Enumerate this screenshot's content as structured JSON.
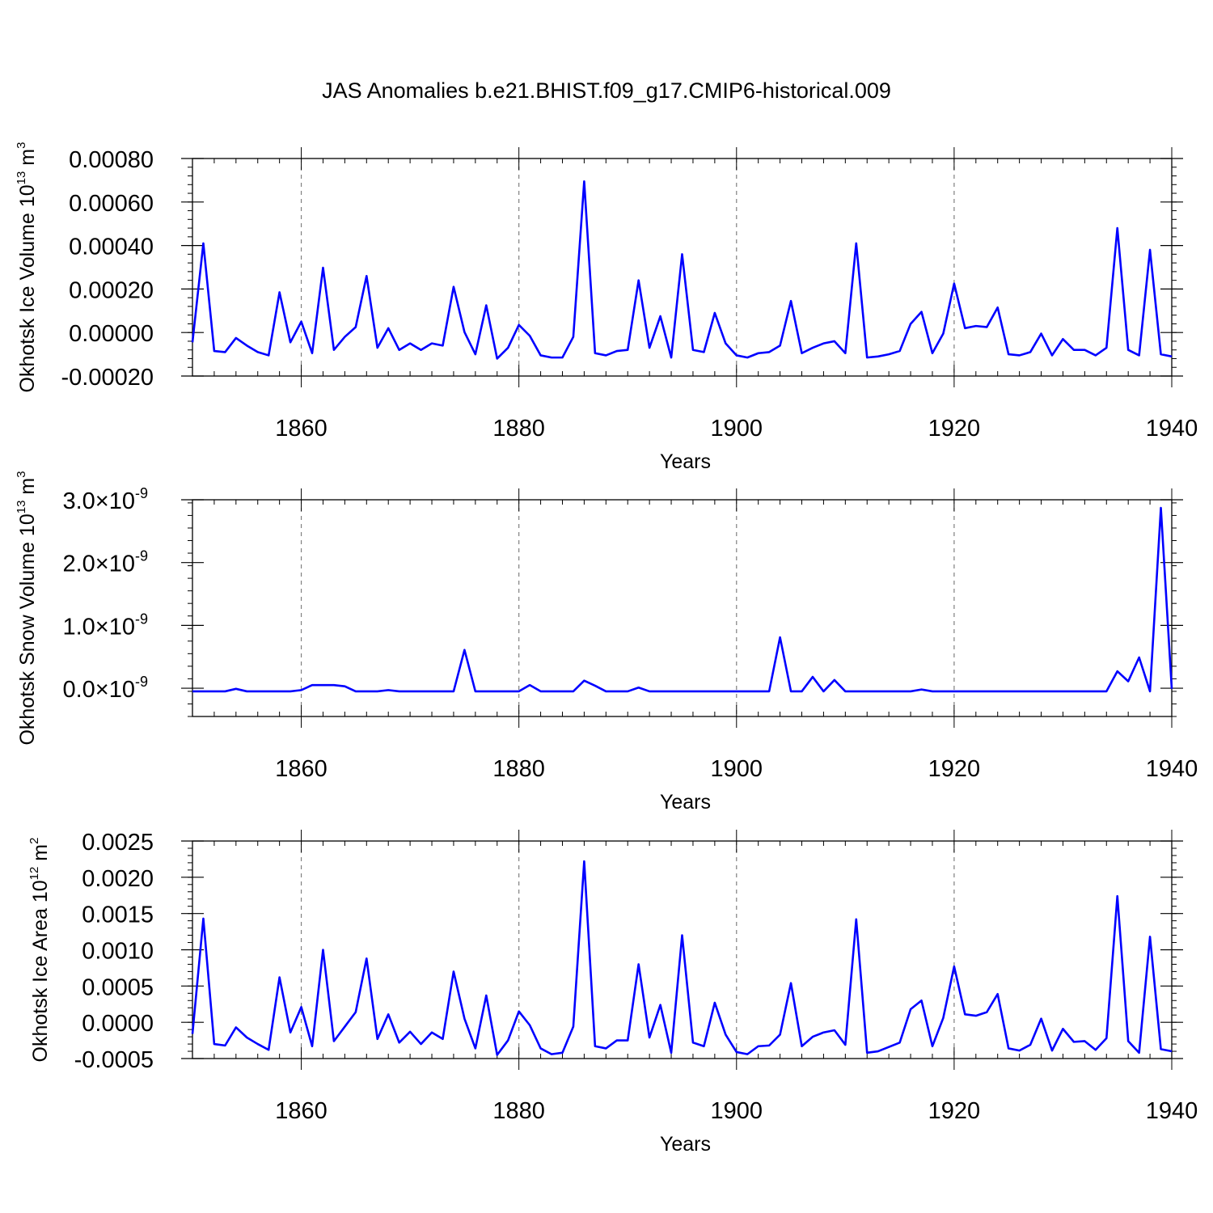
{
  "figure_title": "JAS Anomalies b.e21.BHIST.f09_g17.CMIP6-historical.009",
  "colors": {
    "series": "#0000ff",
    "axis": "#000000",
    "grid": "#808080"
  },
  "chart_data": [
    {
      "type": "line",
      "name": "ice-volume",
      "ylabel_main": "Okhotsk Ice Volume 10",
      "ylabel_exp": "13",
      "ylabel_unit": " m",
      "ylabel_unit_exp": "3",
      "xlabel": "Years",
      "xlim": [
        1850,
        1940
      ],
      "ylim": [
        -0.0002,
        0.0008
      ],
      "xticks": [
        1860,
        1880,
        1900,
        1920,
        1940
      ],
      "xtick_labels": [
        "1860",
        "1880",
        "1900",
        "1920",
        "1940"
      ],
      "yticks": [
        -0.0002,
        0,
        0.0002,
        0.0004,
        0.0006,
        0.0008
      ],
      "ytick_labels": [
        "-0.00020",
        "0.00000",
        "0.00020",
        "0.00040",
        "0.00060",
        "0.00080"
      ],
      "grid": "vertical-dashed",
      "x_start": 1850,
      "values": [
        -4.5e-05,
        0.00041,
        -8.5e-05,
        -9e-05,
        -2.5e-05,
        -6e-05,
        -9e-05,
        -0.000105,
        0.000185,
        -4.5e-05,
        5e-05,
        -9.5e-05,
        0.000298,
        -8e-05,
        -2e-05,
        2.5e-05,
        0.00026,
        -7e-05,
        2e-05,
        -8e-05,
        -5e-05,
        -8e-05,
        -5e-05,
        -6e-05,
        0.00021,
        2e-06,
        -0.0001,
        0.000125,
        -0.00012,
        -7e-05,
        3.5e-05,
        -1.5e-05,
        -0.000105,
        -0.000115,
        -0.000115,
        -2e-05,
        0.000695,
        -9.5e-05,
        -0.000105,
        -8.5e-05,
        -8e-05,
        0.00024,
        -7e-05,
        7.5e-05,
        -0.000115,
        0.00036,
        -8e-05,
        -9e-05,
        9e-05,
        -5e-05,
        -0.000105,
        -0.000115,
        -9.5e-05,
        -9e-05,
        -6e-05,
        0.000145,
        -9.5e-05,
        -7e-05,
        -5e-05,
        -4e-05,
        -9.5e-05,
        0.00041,
        -0.000115,
        -0.00011,
        -0.0001,
        -8.5e-05,
        4e-05,
        9.5e-05,
        -9.5e-05,
        -5e-06,
        0.000225,
        2e-05,
        3e-05,
        2.5e-05,
        0.000115,
        -0.0001,
        -0.000105,
        -9e-05,
        -5e-06,
        -0.000105,
        -3e-05,
        -8e-05,
        -8e-05,
        -0.000105,
        -7e-05,
        0.00048,
        -8e-05,
        -0.000105,
        0.00038,
        -0.0001,
        -0.00011
      ]
    },
    {
      "type": "line",
      "name": "snow-volume",
      "ylabel_main": "Okhotsk Snow Volume 10",
      "ylabel_exp": "13",
      "ylabel_unit": " m",
      "ylabel_unit_exp": "3",
      "xlabel": "Years",
      "xlim": [
        1850,
        1940
      ],
      "ylim": [
        -4.5e-10,
        3e-09
      ],
      "xticks": [
        1860,
        1880,
        1900,
        1920,
        1940
      ],
      "xtick_labels": [
        "1860",
        "1880",
        "1900",
        "1920",
        "1940"
      ],
      "yticks": [
        0,
        1e-09,
        2e-09,
        3e-09
      ],
      "ytick_mantissas": [
        "0.0",
        "1.0",
        "2.0",
        "3.0"
      ],
      "ytick_times": "×",
      "ytick_base": "10",
      "ytick_exp": "-9",
      "grid": "vertical-dashed",
      "x_start": 1850,
      "values": [
        -5e-11,
        -5e-11,
        -5e-11,
        -5e-11,
        -1e-11,
        -5e-11,
        -5e-11,
        -5e-11,
        -5e-11,
        -5e-11,
        -3e-11,
        5e-11,
        5e-11,
        5e-11,
        3e-11,
        -5e-11,
        -5e-11,
        -5e-11,
        -3e-11,
        -5e-11,
        -5e-11,
        -5e-11,
        -5e-11,
        -5e-11,
        -5e-11,
        6.1e-10,
        -5e-11,
        -5e-11,
        -5e-11,
        -5e-11,
        -5e-11,
        5e-11,
        -5e-11,
        -5e-11,
        -5e-11,
        -5e-11,
        1.2e-10,
        4e-11,
        -5e-11,
        -5e-11,
        -5e-11,
        1e-11,
        -5e-11,
        -5e-11,
        -5e-11,
        -5e-11,
        -5e-11,
        -5e-11,
        -5e-11,
        -5e-11,
        -5e-11,
        -5e-11,
        -5e-11,
        -5e-11,
        8.1e-10,
        -5e-11,
        -5e-11,
        1.8e-10,
        -5e-11,
        1.3e-10,
        -5e-11,
        -5e-11,
        -5e-11,
        -5e-11,
        -5e-11,
        -5e-11,
        -5e-11,
        -2e-11,
        -5e-11,
        -5e-11,
        -5e-11,
        -5e-11,
        -5e-11,
        -5e-11,
        -5e-11,
        -5e-11,
        -5e-11,
        -5e-11,
        -5e-11,
        -5e-11,
        -5e-11,
        -5e-11,
        -5e-11,
        -5e-11,
        -5e-11,
        2.7e-10,
        1.1e-10,
        4.9e-10,
        -5e-11,
        2.87e-09,
        -1e-11
      ]
    },
    {
      "type": "line",
      "name": "ice-area",
      "ylabel_main": "Okhotsk Ice Area 10",
      "ylabel_exp": "12",
      "ylabel_unit": " m",
      "ylabel_unit_exp": "2",
      "xlabel": "Years",
      "xlim": [
        1850,
        1940
      ],
      "ylim": [
        -0.0005,
        0.0025
      ],
      "xticks": [
        1860,
        1880,
        1900,
        1920,
        1940
      ],
      "xtick_labels": [
        "1860",
        "1880",
        "1900",
        "1920",
        "1940"
      ],
      "yticks": [
        -0.0005,
        0,
        0.0005,
        0.001,
        0.0015,
        0.002,
        0.0025
      ],
      "ytick_labels": [
        "-0.0005",
        "0.0000",
        "0.0005",
        "0.0010",
        "0.0015",
        "0.0020",
        "0.0025"
      ],
      "grid": "vertical-dashed",
      "x_start": 1850,
      "values": [
        -0.00016,
        0.00143,
        -0.0003,
        -0.00032,
        -7e-05,
        -0.00021,
        -0.0003,
        -0.00038,
        0.00062,
        -0.00014,
        0.00021,
        -0.00033,
        0.001,
        -0.00026,
        -6e-05,
        0.00014,
        0.00088,
        -0.00023,
        0.00011,
        -0.00028,
        -0.00013,
        -0.0003,
        -0.00014,
        -0.00023,
        0.0007,
        5e-05,
        -0.00036,
        0.00037,
        -0.00045,
        -0.00025,
        0.00015,
        -4e-05,
        -0.00036,
        -0.00044,
        -0.00042,
        -6e-05,
        0.00222,
        -0.00033,
        -0.00036,
        -0.00025,
        -0.00025,
        0.0008,
        -0.00021,
        0.00024,
        -0.00042,
        0.0012,
        -0.00028,
        -0.00033,
        0.00027,
        -0.00017,
        -0.00041,
        -0.00044,
        -0.00033,
        -0.00032,
        -0.00017,
        0.00054,
        -0.00033,
        -0.0002,
        -0.00014,
        -0.00011,
        -0.00031,
        0.00142,
        -0.00042,
        -0.0004,
        -0.00034,
        -0.00028,
        0.00018,
        0.0003,
        -0.00033,
        6e-05,
        0.00077,
        0.00011,
        9e-05,
        0.00014,
        0.00039,
        -0.00036,
        -0.00039,
        -0.00031,
        5e-05,
        -0.00039,
        -9e-05,
        -0.00027,
        -0.00026,
        -0.00038,
        -0.00022,
        0.00174,
        -0.00026,
        -0.00042,
        0.00118,
        -0.00037,
        -0.0004
      ]
    }
  ]
}
